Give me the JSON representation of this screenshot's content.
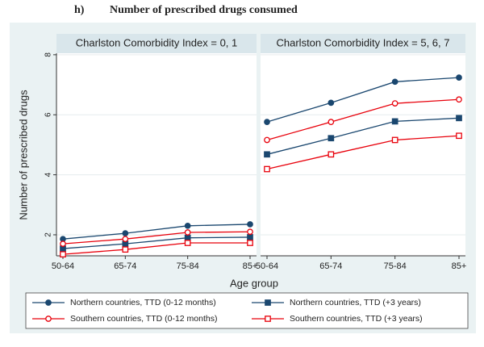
{
  "chart_data": {
    "type": "line",
    "title_label": "h)",
    "title": "Number of prescribed drugs consumed",
    "x_label": "Age group",
    "y_label": "Number of prescribed drugs",
    "categories": [
      "50-64",
      "65-74",
      "75-84",
      "85+"
    ],
    "ylim": [
      1.3,
      8.05
    ],
    "yticks": [
      2,
      4,
      6,
      8
    ],
    "grid": true,
    "series": [
      {
        "name": "Northern countries, TTD (0-12 months)",
        "color": "#1a476f",
        "marker": "circle",
        "filled": true
      },
      {
        "name": "Northern countries, TTD (+3 years)",
        "color": "#1a476f",
        "marker": "square",
        "filled": true
      },
      {
        "name": "Southern countries, TTD (0-12 months)",
        "color": "#e8000b",
        "marker": "circle",
        "filled": false
      },
      {
        "name": "Southern countries, TTD (+3 years)",
        "color": "#e8000b",
        "marker": "square",
        "filled": false
      }
    ],
    "panels": [
      {
        "title": "Charlston Comorbidity Index = 0, 1",
        "values": [
          [
            1.86,
            2.05,
            2.3,
            2.35
          ],
          [
            1.54,
            1.7,
            1.9,
            1.92
          ],
          [
            1.7,
            1.86,
            2.08,
            2.1
          ],
          [
            1.35,
            1.51,
            1.73,
            1.73
          ]
        ]
      },
      {
        "title": "Charlston Comorbidity Index = 5, 6, 7",
        "values": [
          [
            5.76,
            6.4,
            7.1,
            7.24
          ],
          [
            4.68,
            5.22,
            5.78,
            5.89
          ],
          [
            5.16,
            5.76,
            6.38,
            6.51
          ],
          [
            4.19,
            4.68,
            5.16,
            5.3
          ]
        ]
      }
    ]
  }
}
